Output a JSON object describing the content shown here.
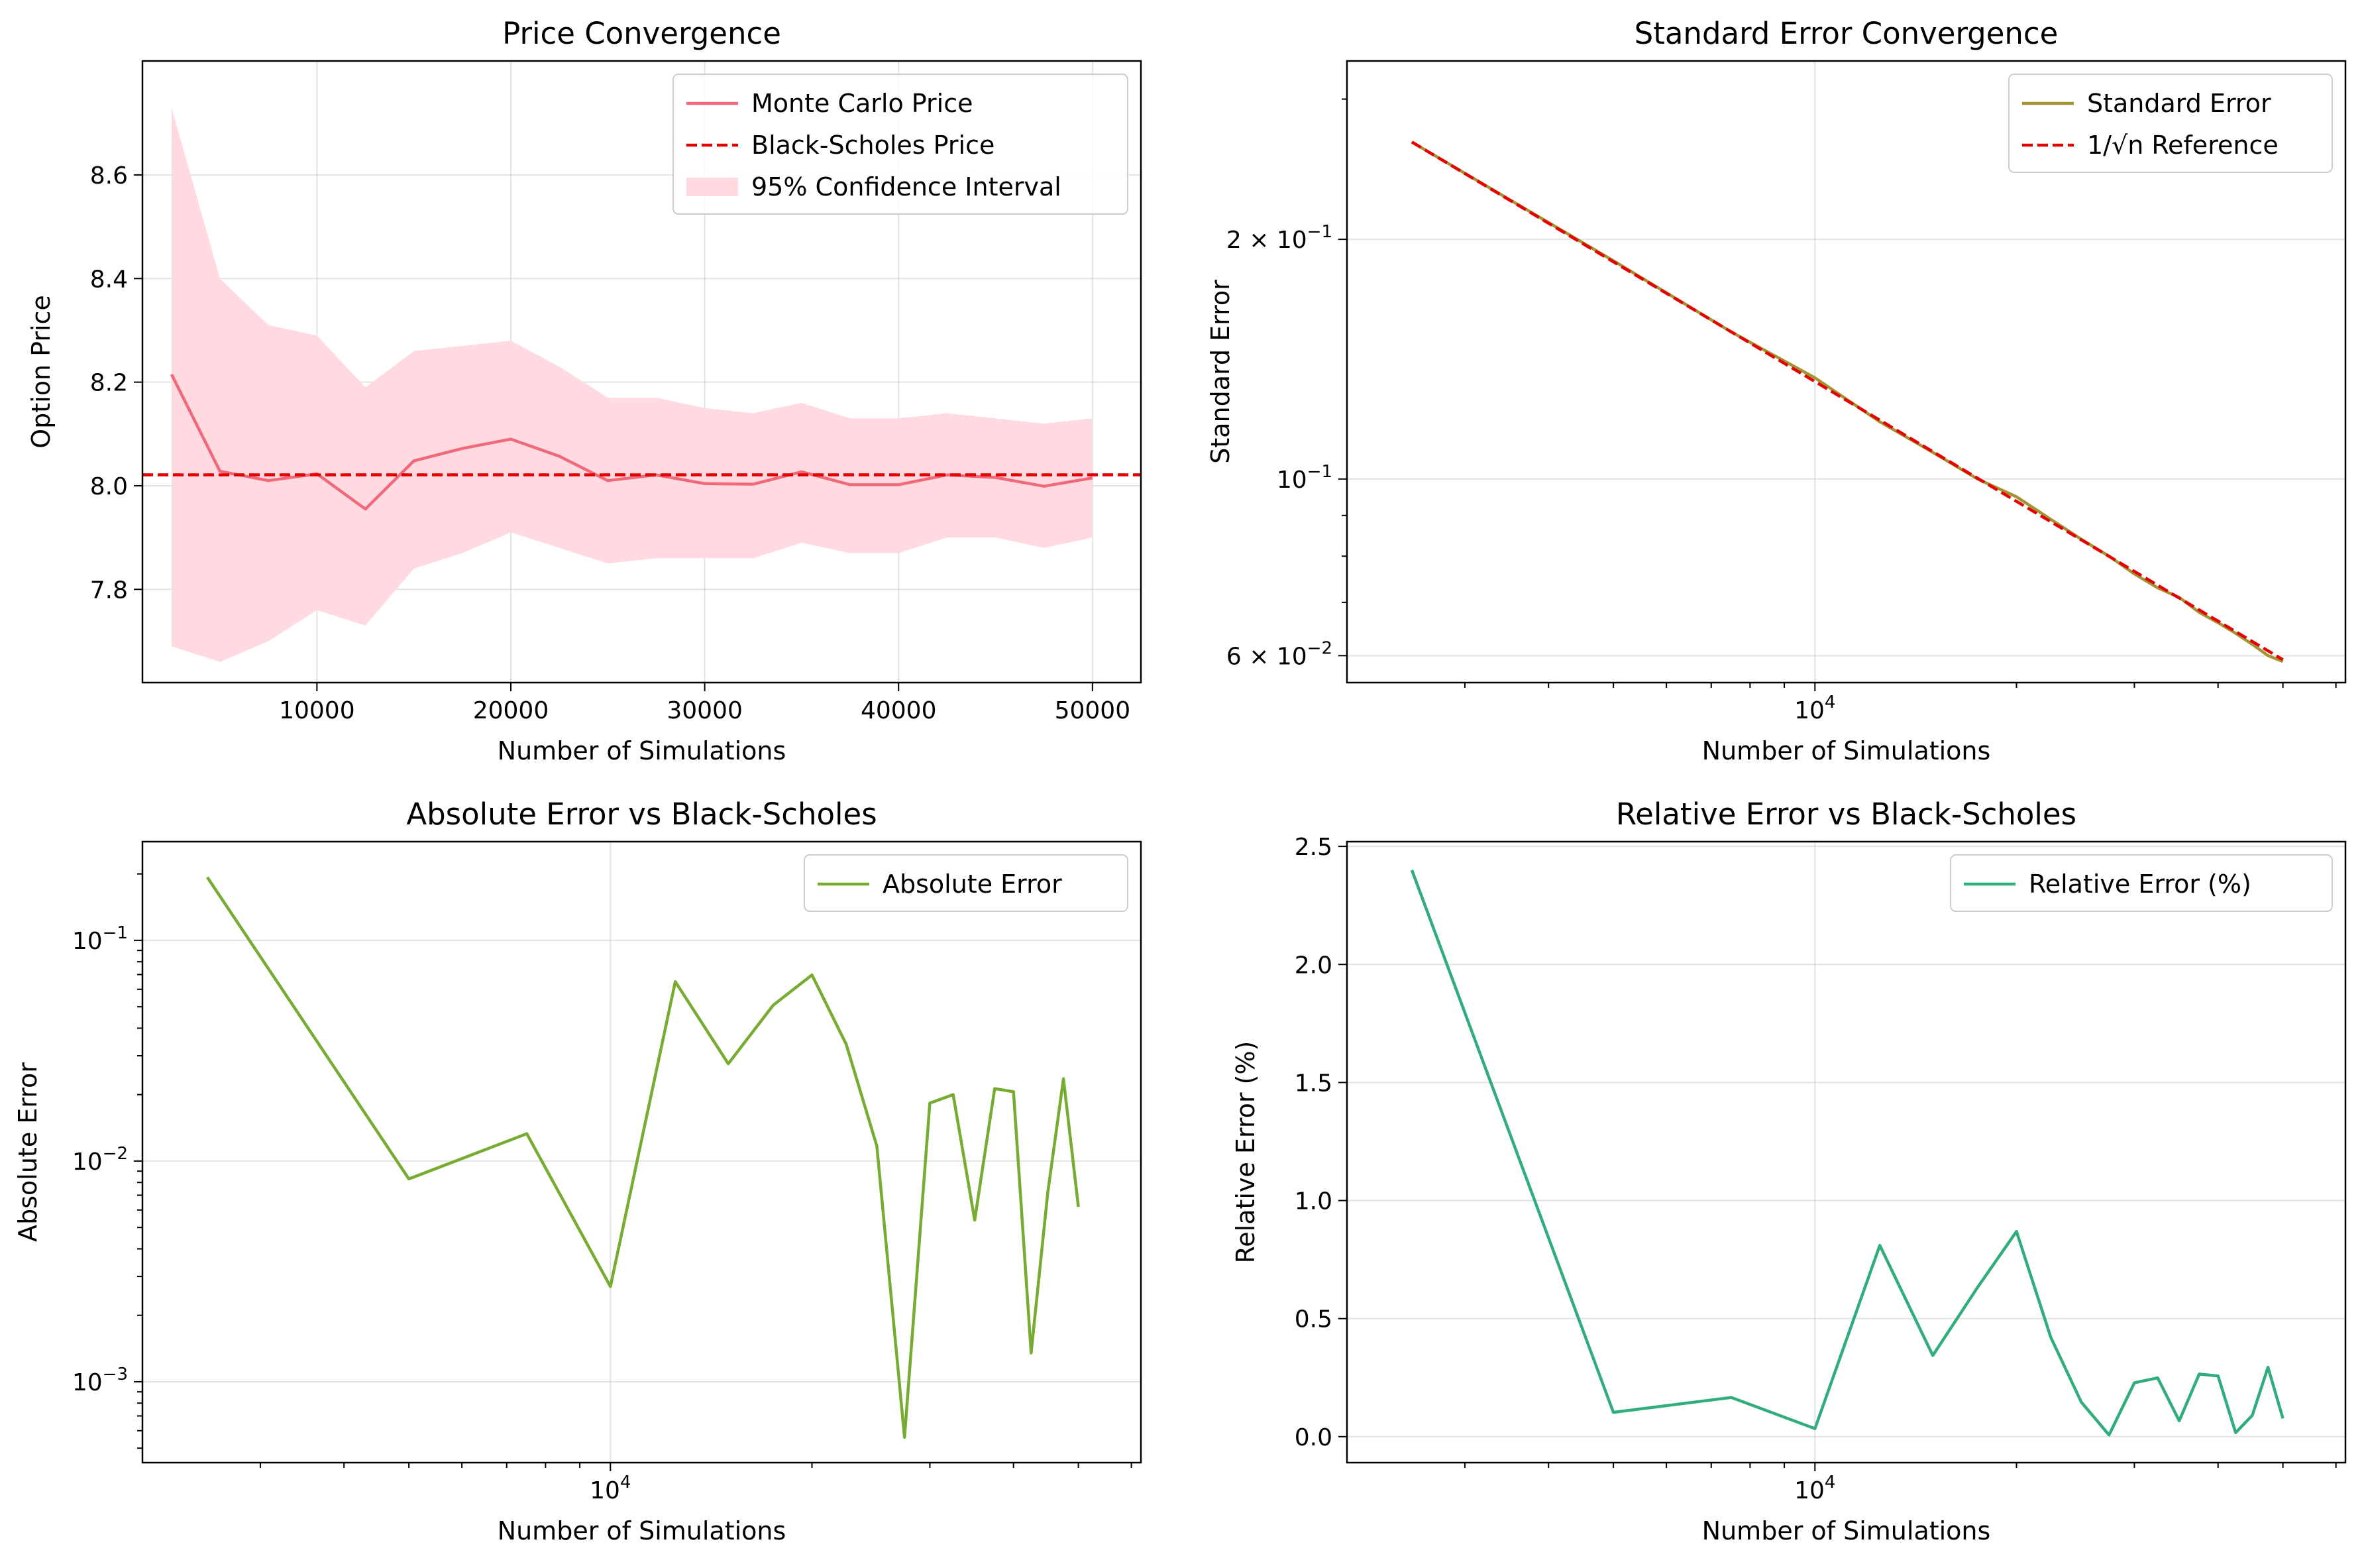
{
  "chart_data": [
    {
      "type": "line",
      "title": "Price Convergence",
      "xlabel": "Number of Simulations",
      "ylabel": "Option Price",
      "xscale": "linear",
      "yscale": "linear",
      "xlim": [
        1000,
        52500
      ],
      "ylim": [
        7.62,
        8.82
      ],
      "xticks": [
        10000,
        20000,
        30000,
        40000,
        50000
      ],
      "xtick_labels": [
        "10000",
        "20000",
        "30000",
        "40000",
        "50000"
      ],
      "yticks": [
        7.8,
        8.0,
        8.2,
        8.4,
        8.6
      ],
      "ytick_labels": [
        "7.8",
        "8.0",
        "8.2",
        "8.4",
        "8.6"
      ],
      "grid": true,
      "legend_position": "upper right",
      "series": [
        {
          "name": "Monte Carlo Price",
          "kind": "line",
          "color": "#f0697b",
          "x": [
            2500,
            5000,
            7500,
            10000,
            12500,
            15000,
            17500,
            20000,
            22500,
            25000,
            27500,
            30000,
            32500,
            35000,
            37500,
            40000,
            42500,
            45000,
            47500,
            50000
          ],
          "y": [
            8.215,
            8.028,
            8.01,
            8.023,
            7.955,
            8.048,
            8.072,
            8.09,
            8.057,
            8.01,
            8.021,
            8.004,
            8.003,
            8.027,
            8.002,
            8.002,
            8.021,
            8.016,
            7.999,
            8.015
          ]
        },
        {
          "name": "Black-Scholes Price",
          "kind": "hline",
          "style": "dashed",
          "color": "#e60000",
          "y": 8.021
        },
        {
          "name": "95% Confidence Interval",
          "kind": "band",
          "color": "#ffdbe1",
          "x": [
            2500,
            5000,
            7500,
            10000,
            12500,
            15000,
            17500,
            20000,
            22500,
            25000,
            27500,
            30000,
            32500,
            35000,
            37500,
            40000,
            42500,
            45000,
            47500,
            50000
          ],
          "lower": [
            7.69,
            7.66,
            7.7,
            7.76,
            7.73,
            7.84,
            7.87,
            7.91,
            7.88,
            7.85,
            7.86,
            7.86,
            7.86,
            7.89,
            7.87,
            7.87,
            7.9,
            7.9,
            7.88,
            7.9
          ],
          "upper": [
            8.73,
            8.4,
            8.31,
            8.29,
            8.19,
            8.26,
            8.27,
            8.28,
            8.23,
            8.17,
            8.17,
            8.15,
            8.14,
            8.16,
            8.13,
            8.13,
            8.14,
            8.13,
            8.12,
            8.13
          ]
        }
      ]
    },
    {
      "type": "line",
      "title": "Standard Error Convergence",
      "xlabel": "Number of Simulations",
      "ylabel": "Standard Error",
      "xscale": "log",
      "yscale": "log",
      "xlim": [
        2000,
        62000
      ],
      "ylim": [
        0.0555,
        0.335
      ],
      "xticks": [
        10000
      ],
      "xtick_labels": [
        "10^4"
      ],
      "yticks": [
        0.06,
        0.1,
        0.2
      ],
      "ytick_labels": [
        "6 × 10^−2",
        "10^−1",
        "2 × 10^−1"
      ],
      "grid": true,
      "legend_position": "upper right",
      "series": [
        {
          "name": "Standard Error",
          "kind": "line",
          "color": "#a39333",
          "x": [
            2500,
            5000,
            7500,
            10000,
            12500,
            15000,
            17500,
            20000,
            22500,
            25000,
            27500,
            30000,
            32500,
            35000,
            37500,
            40000,
            42500,
            45000,
            47500,
            50000
          ],
          "y": [
            0.265,
            0.188,
            0.153,
            0.134,
            0.118,
            0.108,
            0.1,
            0.095,
            0.089,
            0.084,
            0.08,
            0.076,
            0.073,
            0.071,
            0.068,
            0.066,
            0.064,
            0.062,
            0.06,
            0.059
          ]
        },
        {
          "name": "1/√n Reference",
          "kind": "line",
          "style": "dashed",
          "color": "#e60000",
          "x": [
            2500,
            50000
          ],
          "y": [
            0.265,
            0.0593
          ]
        }
      ]
    },
    {
      "type": "line",
      "title": "Absolute Error vs Black-Scholes",
      "xlabel": "Number of Simulations",
      "ylabel": "Absolute Error",
      "xscale": "log",
      "yscale": "log",
      "xlim": [
        2000,
        62000
      ],
      "ylim": [
        0.00043,
        0.28
      ],
      "xticks": [
        10000
      ],
      "xtick_labels": [
        "10^4"
      ],
      "yticks": [
        0.001,
        0.01,
        0.1
      ],
      "ytick_labels": [
        "10^−3",
        "10^−2",
        "10^−1"
      ],
      "grid": true,
      "legend_position": "upper right",
      "series": [
        {
          "name": "Absolute Error",
          "kind": "line",
          "color": "#77ab31",
          "x": [
            2500,
            5000,
            7500,
            10000,
            12500,
            15000,
            17500,
            20000,
            22500,
            25000,
            27500,
            30000,
            32500,
            35000,
            37500,
            40000,
            42500,
            45000,
            47500,
            50000
          ],
          "y": [
            0.193,
            0.0083,
            0.0133,
            0.0027,
            0.065,
            0.0276,
            0.0508,
            0.0697,
            0.0338,
            0.0117,
            0.00056,
            0.0183,
            0.02,
            0.0054,
            0.0213,
            0.0206,
            0.00135,
            0.0072,
            0.0236,
            0.0062
          ]
        }
      ]
    },
    {
      "type": "line",
      "title": "Relative Error vs Black-Scholes",
      "xlabel": "Number of Simulations",
      "ylabel": "Relative Error (%)",
      "xscale": "log",
      "yscale": "linear",
      "xlim": [
        2000,
        62000
      ],
      "ylim": [
        -0.11,
        2.52
      ],
      "xticks": [
        10000
      ],
      "xtick_labels": [
        "10^4"
      ],
      "yticks": [
        0.0,
        0.5,
        1.0,
        1.5,
        2.0,
        2.5
      ],
      "ytick_labels": [
        "0.0",
        "0.5",
        "1.0",
        "1.5",
        "2.0",
        "2.5"
      ],
      "grid": true,
      "legend_position": "upper right",
      "series": [
        {
          "name": "Relative Error (%)",
          "kind": "line",
          "color": "#31ad7c",
          "x": [
            2500,
            5000,
            7500,
            10000,
            12500,
            15000,
            17500,
            20000,
            22500,
            25000,
            27500,
            30000,
            32500,
            35000,
            37500,
            40000,
            42500,
            45000,
            47500,
            50000
          ],
          "y": [
            2.4,
            0.103,
            0.166,
            0.034,
            0.81,
            0.344,
            0.633,
            0.869,
            0.421,
            0.146,
            0.007,
            0.228,
            0.249,
            0.067,
            0.265,
            0.257,
            0.017,
            0.09,
            0.294,
            0.077
          ]
        }
      ]
    }
  ]
}
